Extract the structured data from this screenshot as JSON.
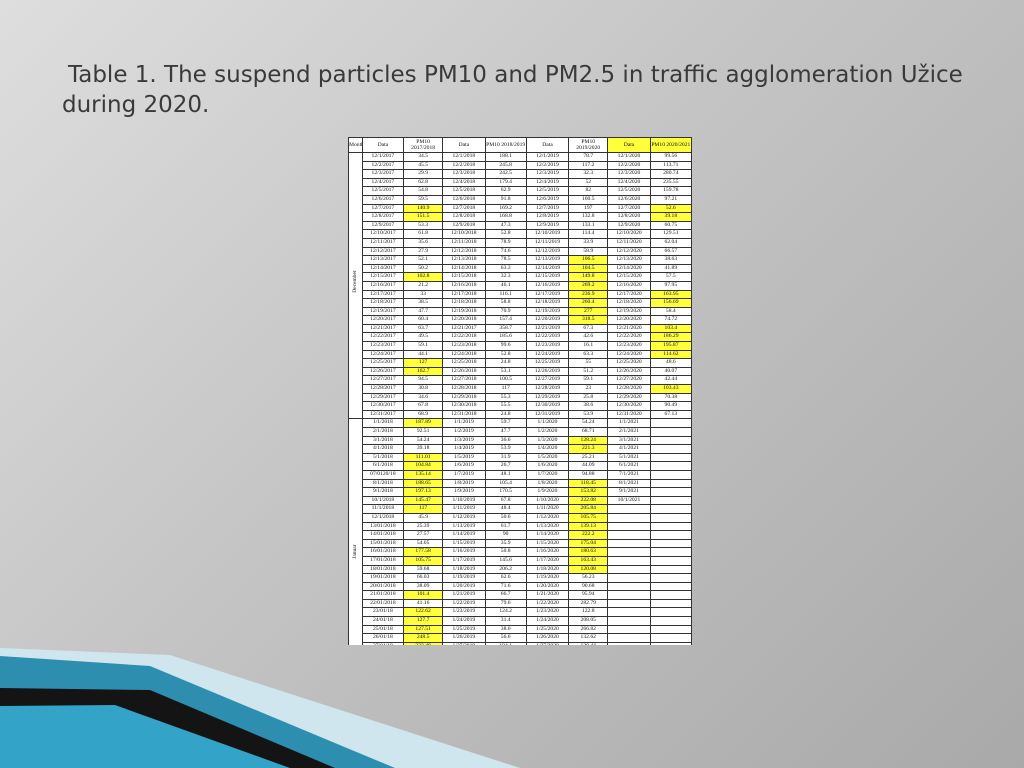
{
  "slide": {
    "title": "Table 1. The suspend particles PM10 and PM2.5 in traffic  agglomeration Užice during 2020."
  },
  "colors": {
    "highlight": "#ffff3c"
  },
  "table": {
    "headers": [
      "Month",
      "Data",
      "PM10 2017/2018",
      "Data",
      "PM10 2018/2019",
      "Data",
      "PM10 2019/2020",
      "Data",
      "PM10 2020/2021"
    ],
    "month_groups": [
      {
        "label": "December",
        "rows": 31
      },
      {
        "label": "Januar",
        "rows": 31
      }
    ],
    "rows": [
      [
        "12/1/2017",
        "34.5",
        "12/1/2018",
        "188.1",
        "12/1/2019",
        "78.7",
        "12/1/2020",
        "99.56"
      ],
      [
        "12/2/2017",
        "45.5",
        "12/2/2018",
        "245.8",
        "12/2/2019",
        "117.2",
        "12/2/2020",
        "113.71"
      ],
      [
        "12/3/2017",
        "29.9",
        "12/3/2018",
        "242.5",
        "12/3/2019",
        "32.3",
        "12/3/2020",
        "280.74"
      ],
      [
        "12/4/2017",
        "62.8",
        "12/4/2018",
        "179.4",
        "12/4/2019",
        "52",
        "12/4/2020",
        "235.55"
      ],
      [
        "12/5/2017",
        "54.8",
        "12/5/2018",
        "62.9",
        "12/5/2019",
        "82",
        "12/5/2020",
        "159.78"
      ],
      [
        "12/6/2017",
        "59.5",
        "12/6/2018",
        "91.8",
        "12/6/2019",
        "160.5",
        "12/6/2020",
        "97.21"
      ],
      [
        "12/7/2017",
        "140.9",
        "12/7/2018",
        "169.2",
        "12/7/2019",
        "197",
        "12/7/2020",
        "52.6"
      ],
      [
        "12/8/2017",
        "151.5",
        "12/8/2018",
        "168.8",
        "12/8/2019",
        "132.8",
        "12/8/2020",
        "39.18"
      ],
      [
        "12/9/2017",
        "53.3",
        "12/9/2018",
        "47.3",
        "12/9/2019",
        "133.1",
        "12/9/2020",
        "60.75"
      ],
      [
        "12/10/2017",
        "61.8",
        "12/10/2018",
        "52.8",
        "12/10/2019",
        "114.4",
        "12/10/2020",
        "129.51"
      ],
      [
        "12/11/2017",
        "35.6",
        "12/11/2018",
        "78.9",
        "12/11/2019",
        "33.9",
        "12/11/2020",
        "62.04"
      ],
      [
        "12/12/2017",
        "27.9",
        "12/12/2018",
        "74.6",
        "12/12/2019",
        "58.9",
        "12/12/2020",
        "66.57"
      ],
      [
        "12/13/2017",
        "52.1",
        "12/13/2018",
        "78.5",
        "12/13/2019",
        "106.5",
        "12/13/2020",
        "38.63"
      ],
      [
        "12/14/2017",
        "50.2",
        "12/14/2018",
        "63.3",
        "12/14/2019",
        "104.5",
        "12/14/2020",
        "41.89"
      ],
      [
        "12/15/2017",
        "102.8",
        "12/15/2018",
        "32.3",
        "12/15/2019",
        "149.8",
        "12/15/2020",
        "57.5"
      ],
      [
        "12/16/2017",
        "21.2",
        "12/16/2018",
        "46.1",
        "12/16/2019",
        "269.2",
        "12/16/2020",
        "97.95"
      ],
      [
        "12/17/2017",
        "33",
        "12/17/2018",
        "116.1",
        "12/17/2019",
        "236.9",
        "12/17/2020",
        "163.95"
      ],
      [
        "12/18/2017",
        "38.5",
        "12/18/2018",
        "58.8",
        "12/18/2019",
        "260.4",
        "12/18/2020",
        "156.69"
      ],
      [
        "12/19/2017",
        "47.7",
        "12/19/2018",
        "70.9",
        "12/19/2019",
        "277",
        "12/19/2020",
        "58.4"
      ],
      [
        "12/20/2017",
        "60.4",
        "12/20/2018",
        "157.4",
        "12/20/2019",
        "318.5",
        "12/20/2020",
        "74.72"
      ],
      [
        "12/21/2017",
        "63.7",
        "12/21/2017",
        "358.7",
        "12/21/2019",
        "67.3",
        "12/21/2020",
        "103.4"
      ],
      [
        "12/22/2017",
        "49.5",
        "12/22/2018",
        "185.6",
        "12/22/2019",
        "42.6",
        "12/22/2020",
        "186.29"
      ],
      [
        "12/23/2017",
        "59.1",
        "12/23/2018",
        "99.6",
        "12/23/2019",
        "16.1",
        "12/23/2020",
        "195.87"
      ],
      [
        "12/24/2017",
        "44.1",
        "12/24/2018",
        "52.8",
        "12/24/2019",
        "63.3",
        "12/24/2020",
        "114.62"
      ],
      [
        "12/25/2017",
        "127",
        "12/25/2018",
        "24.8",
        "12/25/2019",
        "55",
        "12/25/2020",
        "48.6"
      ],
      [
        "12/26/2017",
        "162.7",
        "12/26/2018",
        "53.1",
        "12/26/2019",
        "51.2",
        "12/26/2020",
        "40.07"
      ],
      [
        "12/27/2017",
        "94.5",
        "12/27/2018",
        "100.5",
        "12/27/2019",
        "59.1",
        "12/27/2020",
        "42.44"
      ],
      [
        "12/28/2017",
        "30.8",
        "12/28/2018",
        "117",
        "12/28/2019",
        "23",
        "12/28/2020",
        "103.43"
      ],
      [
        "12/29/2017",
        "34.6",
        "12/29/2018",
        "55.3",
        "12/29/2019",
        "25.8",
        "12/29/2020",
        "70.38"
      ],
      [
        "12/30/2017",
        "67.8",
        "12/30/2018",
        "55.5",
        "12/30/2019",
        "38.6",
        "12/30/2020",
        "90.49"
      ],
      [
        "12/31/2017",
        "68.9",
        "12/31/2018",
        "24.8",
        "12/31/2019",
        "53.9",
        "12/31/2020",
        "67.13"
      ],
      [
        "1/1/2018",
        "187.89",
        "1/1/2019",
        "59.7",
        "1/1/2020",
        "54.24",
        "1/1/2021",
        ""
      ],
      [
        "2/1/2018",
        "92.51",
        "1/2/2019",
        "47.7",
        "1/2/2020",
        "68.71",
        "2/1/2021",
        ""
      ],
      [
        "3/1/2018",
        "54.24",
        "1/3/2019",
        "36.6",
        "1/3/2020",
        "128.24",
        "3/1/2021",
        ""
      ],
      [
        "4/1/2018",
        "39.18",
        "1/4/2019",
        "53.9",
        "1/4/2020",
        "221.3",
        "4/1/2021",
        ""
      ],
      [
        "5/1/2018",
        "111.01",
        "1/5/2019",
        "31.9",
        "1/5/2020",
        "25.21",
        "5/1/2021",
        ""
      ],
      [
        "6/1/2018",
        "104.84",
        "1/6/2019",
        "26.7",
        "1/6/2020",
        "44.09",
        "6/1/2021",
        ""
      ],
      [
        "07/0120/18",
        "135.14",
        "1/7/2019",
        "48.1",
        "1/7/2020",
        "94.88",
        "7/1/2021",
        ""
      ],
      [
        "8/1/2018",
        "188.65",
        "1/8/2019",
        "105.4",
        "1/8/2020",
        "118.45",
        "8/1/2021",
        ""
      ],
      [
        "9/1/2018",
        "197.13",
        "1/9/2019",
        "170.5",
        "1/9/2020",
        "153.82",
        "9/1/2021",
        ""
      ],
      [
        "10/1/2018",
        "145.47",
        "1/10/2019",
        "67.8",
        "1/10/2020",
        "222.08",
        "10/1/2021",
        ""
      ],
      [
        "11/1/2018",
        "117",
        "1/11/2019",
        "48.4",
        "1/11/2020",
        "205.84",
        "",
        ""
      ],
      [
        "12/1/2018",
        "45.9",
        "1/12/2019",
        "50.6",
        "1/12/2020",
        "105.75",
        "",
        ""
      ],
      [
        "13/01/2018",
        "25.39",
        "1/13/2019",
        "61.7",
        "1/13/2020",
        "139.13",
        "",
        ""
      ],
      [
        "14/01/2018",
        "27.57",
        "1/14/2019",
        "90",
        "1/14/2020",
        "222.2",
        "",
        ""
      ],
      [
        "15/01/2018",
        "54.05",
        "1/15/2019",
        "35.9",
        "1/15/2020",
        "175.04",
        "",
        ""
      ],
      [
        "16/01/2018",
        "177.58",
        "1/16/2019",
        "50.8",
        "1/16/2020",
        "180.63",
        "",
        ""
      ],
      [
        "17/01/2018",
        "105.75",
        "1/17/2019",
        "145.6",
        "1/17/2020",
        "163.43",
        "",
        ""
      ],
      [
        "18/01/2018",
        "59.68",
        "1/18/2019",
        "206.2",
        "1/18/2020",
        "120.08",
        "",
        ""
      ],
      [
        "19/01/2018",
        "66.03",
        "1/19/2019",
        "62.6",
        "1/19/2020",
        "56.23",
        "",
        ""
      ],
      [
        "20/01/2018",
        "38.09",
        "1/20/2019",
        "71.6",
        "1/20/2020",
        "90.68",
        "",
        ""
      ],
      [
        "21/01/2018",
        "101.4",
        "1/21/2019",
        "66.7",
        "1/21/2020",
        "95.94",
        "",
        ""
      ],
      [
        "22/01/2018",
        "41.16",
        "1/22/2019",
        "79.6",
        "1/22/2020",
        "282.79",
        "",
        ""
      ],
      [
        "23/01/18",
        "122.62",
        "1/23/2019",
        "124.2",
        "1/23/2020",
        "122.8",
        "",
        ""
      ],
      [
        "24/01/18",
        "127.7",
        "1/24/2019",
        "31.4",
        "1/24/2020",
        "208.05",
        "",
        ""
      ],
      [
        "25/01/18",
        "127.51",
        "1/25/2019",
        "38.6",
        "1/25/2020",
        "266.82",
        "",
        ""
      ],
      [
        "26/01/18",
        "248.5",
        "1/26/2019",
        "56.6",
        "1/26/2020",
        "132.62",
        "",
        ""
      ],
      [
        "27/01/18",
        "233.48",
        "1/27/2019",
        "184.1",
        "1/27/2020",
        "120.44",
        "",
        ""
      ],
      [
        "28/01/18",
        "198.8",
        "1/28/2019",
        "162.9",
        "1/28/2020",
        "107.91",
        "",
        ""
      ],
      [
        "29/01/18",
        "201.34",
        "1/29/2019",
        "65.7",
        "1/29/2020",
        "46.06",
        "",
        ""
      ],
      [
        "30/01/18",
        "177.91",
        "1/30/2019",
        "86.7",
        "1/30/2020",
        "91.22",
        "",
        ""
      ],
      [
        "31/01/18",
        "125.54",
        "1/31/2019",
        "102.5",
        "1/31/2020",
        "89.48",
        "",
        ""
      ]
    ]
  }
}
